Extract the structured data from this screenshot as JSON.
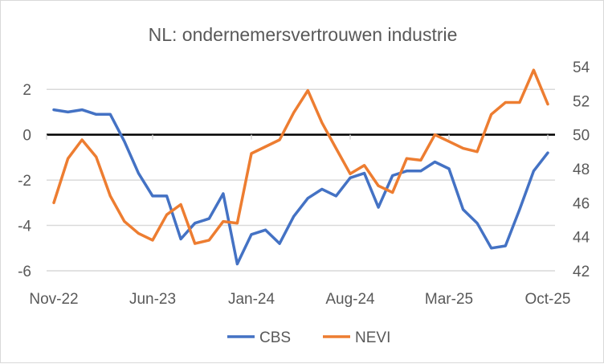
{
  "chart_data": {
    "type": "line",
    "title": "NL: ondernemersvertrouwen industrie",
    "x": [
      "Nov-22",
      "Dec-22",
      "Jan-23",
      "Feb-23",
      "Mar-23",
      "Apr-23",
      "May-23",
      "Jun-23",
      "Jul-23",
      "Aug-23",
      "Sep-23",
      "Oct-23",
      "Nov-23",
      "Dec-23",
      "Jan-24",
      "Feb-24",
      "Mar-24",
      "Apr-24",
      "May-24",
      "Jun-24",
      "Jul-24",
      "Aug-24",
      "Sep-24",
      "Oct-24",
      "Nov-24",
      "Dec-24",
      "Jan-25",
      "Feb-25",
      "Mar-25",
      "Apr-25",
      "May-25",
      "Jun-25",
      "Jul-25",
      "Aug-25",
      "Sep-25",
      "Oct-25"
    ],
    "x_tick_labels": [
      "Nov-22",
      "Jun-23",
      "Jan-24",
      "Aug-24",
      "Mar-25",
      "Oct-25"
    ],
    "left_axis": {
      "ylim": [
        -6,
        3
      ],
      "ticks": [
        "-6",
        "-4",
        "-2",
        "0",
        "2"
      ],
      "tick_values": [
        -6,
        -4,
        -2,
        0,
        2
      ]
    },
    "right_axis": {
      "ylim": [
        42,
        54
      ],
      "ticks": [
        "42",
        "44",
        "46",
        "48",
        "50",
        "52",
        "54"
      ],
      "tick_values": [
        42,
        44,
        46,
        48,
        50,
        52,
        54
      ]
    },
    "grid": true,
    "legend_position": "bottom",
    "series": [
      {
        "name": "CBS",
        "axis": "left",
        "color": "#4472c4",
        "values": [
          1.1,
          1.0,
          1.1,
          0.9,
          0.9,
          -0.3,
          -1.7,
          -2.7,
          -2.7,
          -4.6,
          -3.9,
          -3.7,
          -2.6,
          -5.7,
          -4.4,
          -4.2,
          -4.8,
          -3.6,
          -2.8,
          -2.4,
          -2.7,
          -1.9,
          -1.7,
          -3.2,
          -1.8,
          -1.6,
          -1.6,
          -1.2,
          -1.5,
          -3.3,
          -3.9,
          -5.0,
          -4.9,
          -3.3,
          -1.6,
          -0.8
        ]
      },
      {
        "name": "NEVI",
        "axis": "right",
        "color": "#ed7d31",
        "values": [
          46.0,
          48.6,
          49.7,
          48.7,
          46.4,
          44.9,
          44.2,
          43.8,
          45.3,
          45.9,
          43.6,
          43.8,
          44.9,
          44.8,
          48.9,
          49.3,
          49.7,
          51.3,
          52.6,
          50.7,
          49.2,
          47.7,
          48.2,
          47.0,
          46.6,
          48.6,
          48.5,
          50.0,
          49.6,
          49.2,
          49.0,
          51.2,
          51.9,
          51.9,
          53.8,
          51.8
        ]
      }
    ]
  }
}
